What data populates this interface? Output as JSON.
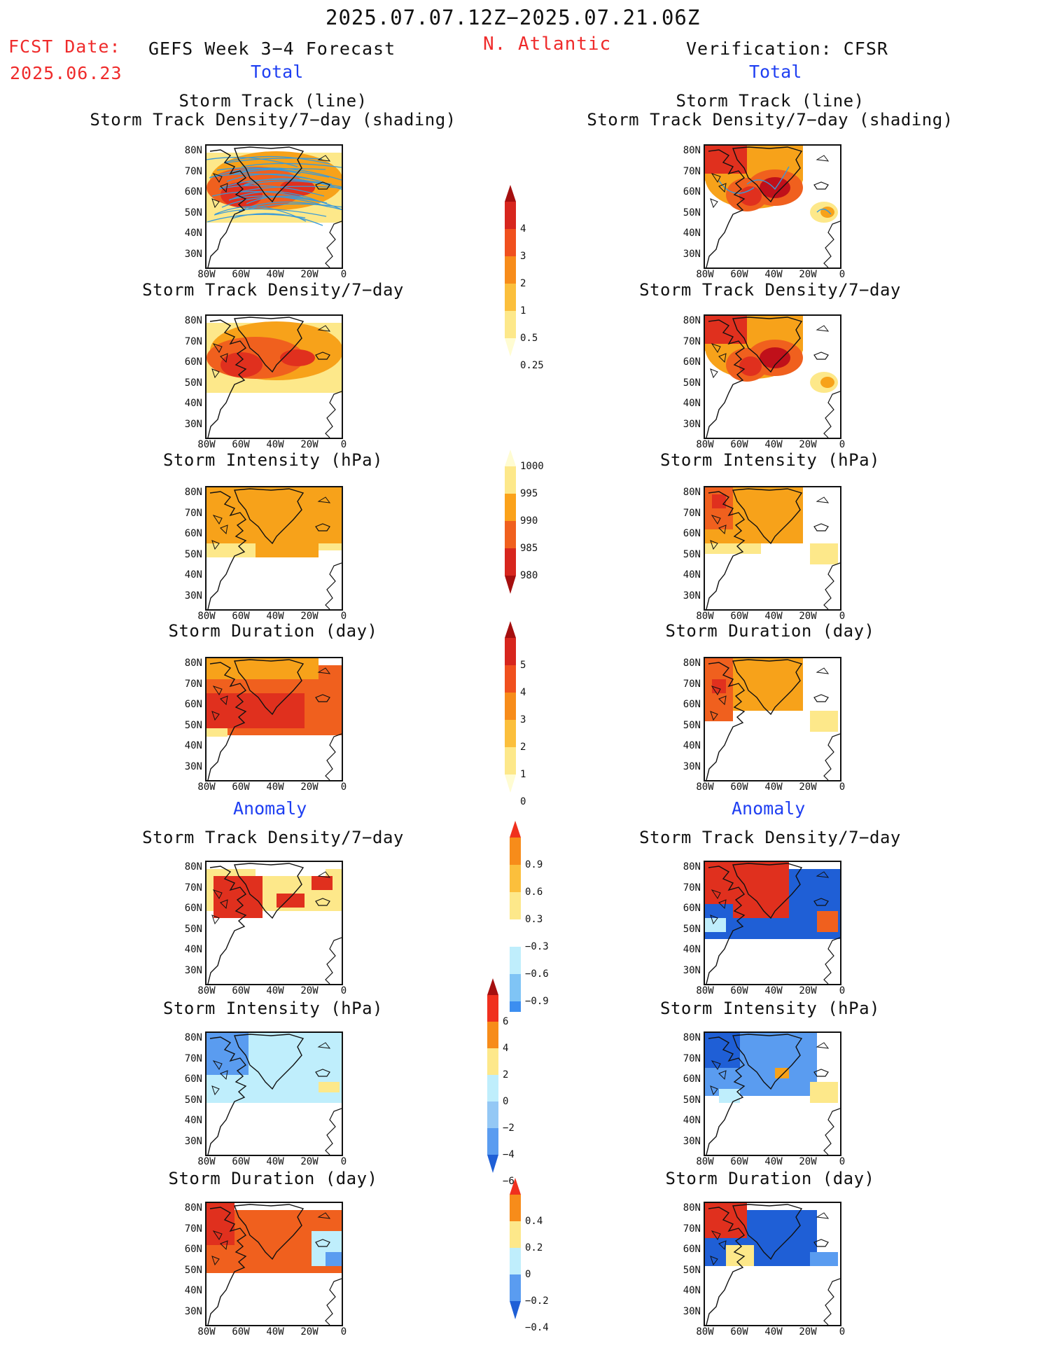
{
  "header": {
    "date_range": "2025.07.07.12Z−2025.07.21.06Z",
    "fcst_label": "FCST Date:",
    "fcst_date": "2025.06.23",
    "forecast_title": "GEFS Week 3−4 Forecast",
    "region": "N. Atlantic",
    "verification_title": "Verification: CFSR",
    "total_left": "Total",
    "total_right": "Total",
    "anomaly_left": "Anomaly",
    "anomaly_right": "Anomaly"
  },
  "panels": {
    "track_line": "Storm Track (line)",
    "track_shading": "Storm Track Density/7−day (shading)",
    "density": "Storm Track Density/7−day",
    "intensity": "Storm Intensity (hPa)",
    "duration": "Storm Duration (day)"
  },
  "axes": {
    "lat_labels": [
      "80N",
      "70N",
      "60N",
      "50N",
      "40N",
      "30N"
    ],
    "lon_labels": [
      "80W",
      "60W",
      "40W",
      "20W",
      "0"
    ]
  },
  "colorbars": {
    "density_total": {
      "labels": [
        "4",
        "3",
        "2",
        "1",
        "0.5",
        "0.25"
      ],
      "colors": [
        "#a50f0f",
        "#d7261e",
        "#f0501e",
        "#f78c1a",
        "#fbbf3c",
        "#fde88a",
        "#fffcd2"
      ]
    },
    "intensity_total": {
      "labels": [
        "1000",
        "995",
        "990",
        "985",
        "980"
      ],
      "colors": [
        "#fffcd2",
        "#fde88a",
        "#fba21a",
        "#f0601e",
        "#d7261e",
        "#a50f0f"
      ]
    },
    "duration_total": {
      "labels": [
        "5",
        "4",
        "3",
        "2",
        "1",
        "0"
      ],
      "colors": [
        "#a50f0f",
        "#d7261e",
        "#f0501e",
        "#f78c1a",
        "#fbbf3c",
        "#fde88a",
        "#fffcd2"
      ]
    },
    "density_anom": {
      "labels": [
        "0.9",
        "0.6",
        "0.3",
        "−0.3",
        "−0.6",
        "−0.9"
      ],
      "colors": [
        "#f0301e",
        "#f78c1a",
        "#fbbf3c",
        "#fde88a",
        "#ffffff",
        "#bfeefc",
        "#7fc4f5",
        "#3c8ef0",
        "#1f5fd6"
      ]
    },
    "intensity_anom": {
      "labels": [
        "6",
        "4",
        "2",
        "0",
        "−2",
        "−4",
        "−6"
      ],
      "colors": [
        "#a50f0f",
        "#f0301e",
        "#f78c1a",
        "#fde88a",
        "#bfeefc",
        "#94c8f5",
        "#5a9cf0",
        "#1f5fd6"
      ]
    },
    "duration_anom": {
      "labels": [
        "0.4",
        "0.2",
        "0",
        "−0.2",
        "−0.4"
      ],
      "colors": [
        "#f0301e",
        "#f78c1a",
        "#fde88a",
        "#bfeefc",
        "#5a9cf0",
        "#1f5fd6"
      ]
    }
  }
}
